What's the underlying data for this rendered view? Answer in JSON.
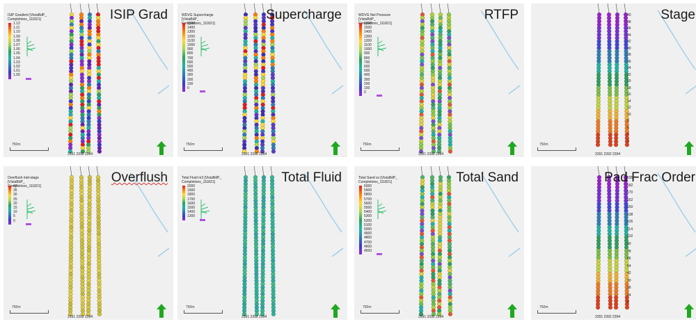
{
  "panels": [
    {
      "title": "ISIP Grad",
      "legend_title": "ISIP Gradient [VistaBdP_ Completions_111821]",
      "legend_values": [
        "1.12",
        "1.11",
        "1.10",
        "1.09",
        "1.08",
        "1.07",
        "1.06",
        "1.05",
        "1.04",
        "1.03",
        "1.02",
        "1.01",
        "1.00"
      ],
      "scale": "750m",
      "wells": "2391 2392 2394",
      "palette": "rainbow",
      "stages": false
    },
    {
      "title": "Supercharge",
      "legend_title": "WDVG Supercharge [VistaBdP_ Completions_111821]",
      "legend_values": [
        "1500",
        "1400",
        "1300",
        "1200",
        "1100",
        "1000",
        "900",
        "800",
        "700",
        "600",
        "500",
        "400",
        "300",
        "200",
        "100",
        "0"
      ],
      "scale": "750m",
      "wells": "2391 2392 2394",
      "palette": "purple",
      "stages": false
    },
    {
      "title": "RTFP",
      "legend_title": "WDVG Net Pressure [VistaBdP_ Completions_111821]",
      "legend_values": [
        "1600",
        "1500",
        "1400",
        "1300",
        "1200",
        "1100",
        "1000",
        "900",
        "800",
        "700",
        "600",
        "500",
        "400",
        "300",
        "200",
        "100",
        "0"
      ],
      "scale": "750m",
      "wells": "2391 2392 2394",
      "palette": "green",
      "stages": false
    },
    {
      "title": "Stage",
      "legend_title": "",
      "legend_values": [],
      "scale": "750m",
      "wells": "2391 2392 2394",
      "palette": "gradient",
      "stages": true,
      "stage_labels": [
        "40",
        "38",
        "36",
        "34",
        "32",
        "30",
        "28",
        "26",
        "24",
        "22",
        "20",
        "18",
        "16",
        "14",
        "12",
        "10",
        "8",
        "6",
        "4",
        "2"
      ]
    },
    {
      "title": "Overflush",
      "legend_title": "Overflush mid-stage [VistaBdP_ Completions_111821]",
      "legend_values": [
        "40",
        "35",
        "30",
        "25",
        "20",
        "15",
        "10",
        "5",
        "0"
      ],
      "scale": "750m",
      "wells": "2391 2392 2394",
      "palette": "yellow",
      "stages": false
    },
    {
      "title": "Total Fluid",
      "legend_title": "Total Fluid m3 [VistaBdP_ Completions_111821]",
      "legend_values": [
        "2000",
        "1900",
        "1800",
        "1700",
        "1600",
        "1500",
        "1400",
        "1300"
      ],
      "scale": "750m",
      "wells": "2391 2392 2394",
      "palette": "teal",
      "stages": false
    },
    {
      "title": "Total Sand",
      "legend_title": "Total Sand ss [VistaBdP_ Completions_111821]",
      "legend_values": [
        "6000",
        "5900",
        "5800",
        "5700",
        "5600",
        "5500",
        "5400",
        "5300",
        "5200",
        "5100",
        "5000",
        "4900",
        "4800",
        "4700",
        "4600",
        "4500"
      ],
      "scale": "750m",
      "wells": "2391 2392 2394",
      "palette": "green",
      "stages": false
    },
    {
      "title": "Pad Frac Order",
      "legend_title": "",
      "legend_values": [],
      "scale": "750m",
      "wells": "2391 2392 2394",
      "palette": "gradient",
      "stages": true,
      "stage_labels": [
        "195",
        "182",
        "170",
        "162",
        "150",
        "138",
        "126",
        "114",
        "102",
        "90",
        "78",
        "66",
        "54",
        "42",
        "30",
        "18",
        "14",
        "6"
      ]
    }
  ],
  "colors": {
    "rainbow": [
      "#e41a1c",
      "#ff7f00",
      "#ffd92f",
      "#a6d854",
      "#2ca25f",
      "#1fb5a6",
      "#2c7fb8",
      "#3b3bcc",
      "#6a1fb0",
      "#8e2bd1"
    ],
    "purple": [
      "#3c2fb3",
      "#4a32c2",
      "#5b3cc8",
      "#2c7fb8",
      "#1fb5a6",
      "#a6d854",
      "#ffd92f",
      "#ff7f00",
      "#e41a1c"
    ],
    "green": [
      "#6cc24a",
      "#8ccf3b",
      "#4fb36a",
      "#2ca25f",
      "#b5d334",
      "#1fb5a6",
      "#e1d13a",
      "#7b52c9",
      "#e4572e"
    ],
    "gradient": [
      "#9b1fd1",
      "#7a2fd6",
      "#4146d8",
      "#2c7fb8",
      "#1fb5a6",
      "#2ca25f",
      "#7cc242",
      "#c7d53a",
      "#f2b32b",
      "#f27a1d",
      "#e0401a"
    ],
    "yellow": [
      "#d9c63a",
      "#e0cb3d",
      "#cdbf34",
      "#e5d043",
      "#c9b92f",
      "#d4c63b"
    ],
    "teal": [
      "#2ab59c",
      "#33b993",
      "#2fae9e",
      "#3cbf8a",
      "#28a8a4"
    ],
    "legend_stops": [
      "#e41a1c",
      "#ff7f00",
      "#ffd92f",
      "#a6d854",
      "#2ca25f",
      "#1fb5a6",
      "#2c7fb8",
      "#3b3bcc",
      "#8e2bd1"
    ]
  }
}
